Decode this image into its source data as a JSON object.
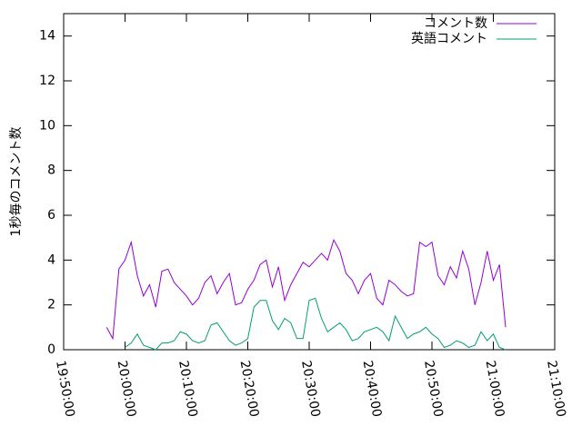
{
  "chart_data": {
    "type": "line",
    "ylabel": "1秒毎のコメント数",
    "xlim": [
      "19:50:00",
      "21:10:00"
    ],
    "xticks": [
      "19:50:00",
      "20:00:00",
      "20:10:00",
      "20:20:00",
      "20:30:00",
      "20:40:00",
      "20:50:00",
      "21:00:00",
      "21:10:00"
    ],
    "ylim": [
      0,
      15
    ],
    "yticks": [
      0,
      2,
      4,
      6,
      8,
      10,
      12,
      14
    ],
    "legend": "top-right",
    "x": [
      "19:57:00",
      "19:58:00",
      "19:59:00",
      "20:00:00",
      "20:01:00",
      "20:02:00",
      "20:03:00",
      "20:04:00",
      "20:05:00",
      "20:06:00",
      "20:07:00",
      "20:08:00",
      "20:09:00",
      "20:10:00",
      "20:11:00",
      "20:12:00",
      "20:13:00",
      "20:14:00",
      "20:15:00",
      "20:16:00",
      "20:17:00",
      "20:18:00",
      "20:19:00",
      "20:20:00",
      "20:21:00",
      "20:22:00",
      "20:23:00",
      "20:24:00",
      "20:25:00",
      "20:26:00",
      "20:27:00",
      "20:28:00",
      "20:29:00",
      "20:30:00",
      "20:31:00",
      "20:32:00",
      "20:33:00",
      "20:34:00",
      "20:35:00",
      "20:36:00",
      "20:37:00",
      "20:38:00",
      "20:39:00",
      "20:40:00",
      "20:41:00",
      "20:42:00",
      "20:43:00",
      "20:44:00",
      "20:45:00",
      "20:46:00",
      "20:47:00",
      "20:48:00",
      "20:49:00",
      "20:50:00",
      "20:51:00",
      "20:52:00",
      "20:53:00",
      "20:54:00",
      "20:55:00",
      "20:56:00",
      "20:57:00",
      "20:58:00",
      "20:59:00",
      "21:00:00",
      "21:01:00",
      "21:02:00"
    ],
    "series": [
      {
        "name": "コメント数",
        "color": "#9400d3",
        "values": [
          1.0,
          0.5,
          3.6,
          4.0,
          4.8,
          3.3,
          2.4,
          2.9,
          1.9,
          3.5,
          3.6,
          3.0,
          2.7,
          2.4,
          2.0,
          2.3,
          3.0,
          3.3,
          2.5,
          3.0,
          3.4,
          2.0,
          2.1,
          2.7,
          3.1,
          3.8,
          4.0,
          2.8,
          3.7,
          2.2,
          2.9,
          3.4,
          3.9,
          3.7,
          4.0,
          4.3,
          4.0,
          4.9,
          4.4,
          3.4,
          3.1,
          2.5,
          3.1,
          3.4,
          2.3,
          2.0,
          3.1,
          2.9,
          2.6,
          2.4,
          2.5,
          4.8,
          4.6,
          4.8,
          3.3,
          2.9,
          3.7,
          3.2,
          4.4,
          3.6,
          2.0,
          3.0,
          4.4,
          3.1,
          3.8,
          1.0
        ]
      },
      {
        "name": "英語コメント",
        "color": "#009e73",
        "values": [
          null,
          null,
          null,
          0.1,
          0.3,
          0.7,
          0.2,
          0.1,
          0.0,
          0.3,
          0.3,
          0.4,
          0.8,
          0.7,
          0.4,
          0.3,
          0.4,
          1.1,
          1.2,
          0.8,
          0.4,
          0.2,
          0.3,
          0.5,
          1.9,
          2.2,
          2.2,
          1.3,
          0.9,
          1.4,
          1.2,
          0.5,
          0.5,
          2.2,
          2.3,
          1.4,
          0.8,
          1.0,
          1.2,
          0.9,
          0.4,
          0.5,
          0.8,
          0.9,
          1.0,
          0.8,
          0.4,
          1.5,
          1.0,
          0.5,
          0.7,
          0.8,
          1.0,
          0.7,
          0.5,
          0.1,
          0.2,
          0.4,
          0.3,
          0.1,
          0.2,
          0.8,
          0.4,
          0.7,
          0.1,
          0.0
        ]
      }
    ]
  }
}
